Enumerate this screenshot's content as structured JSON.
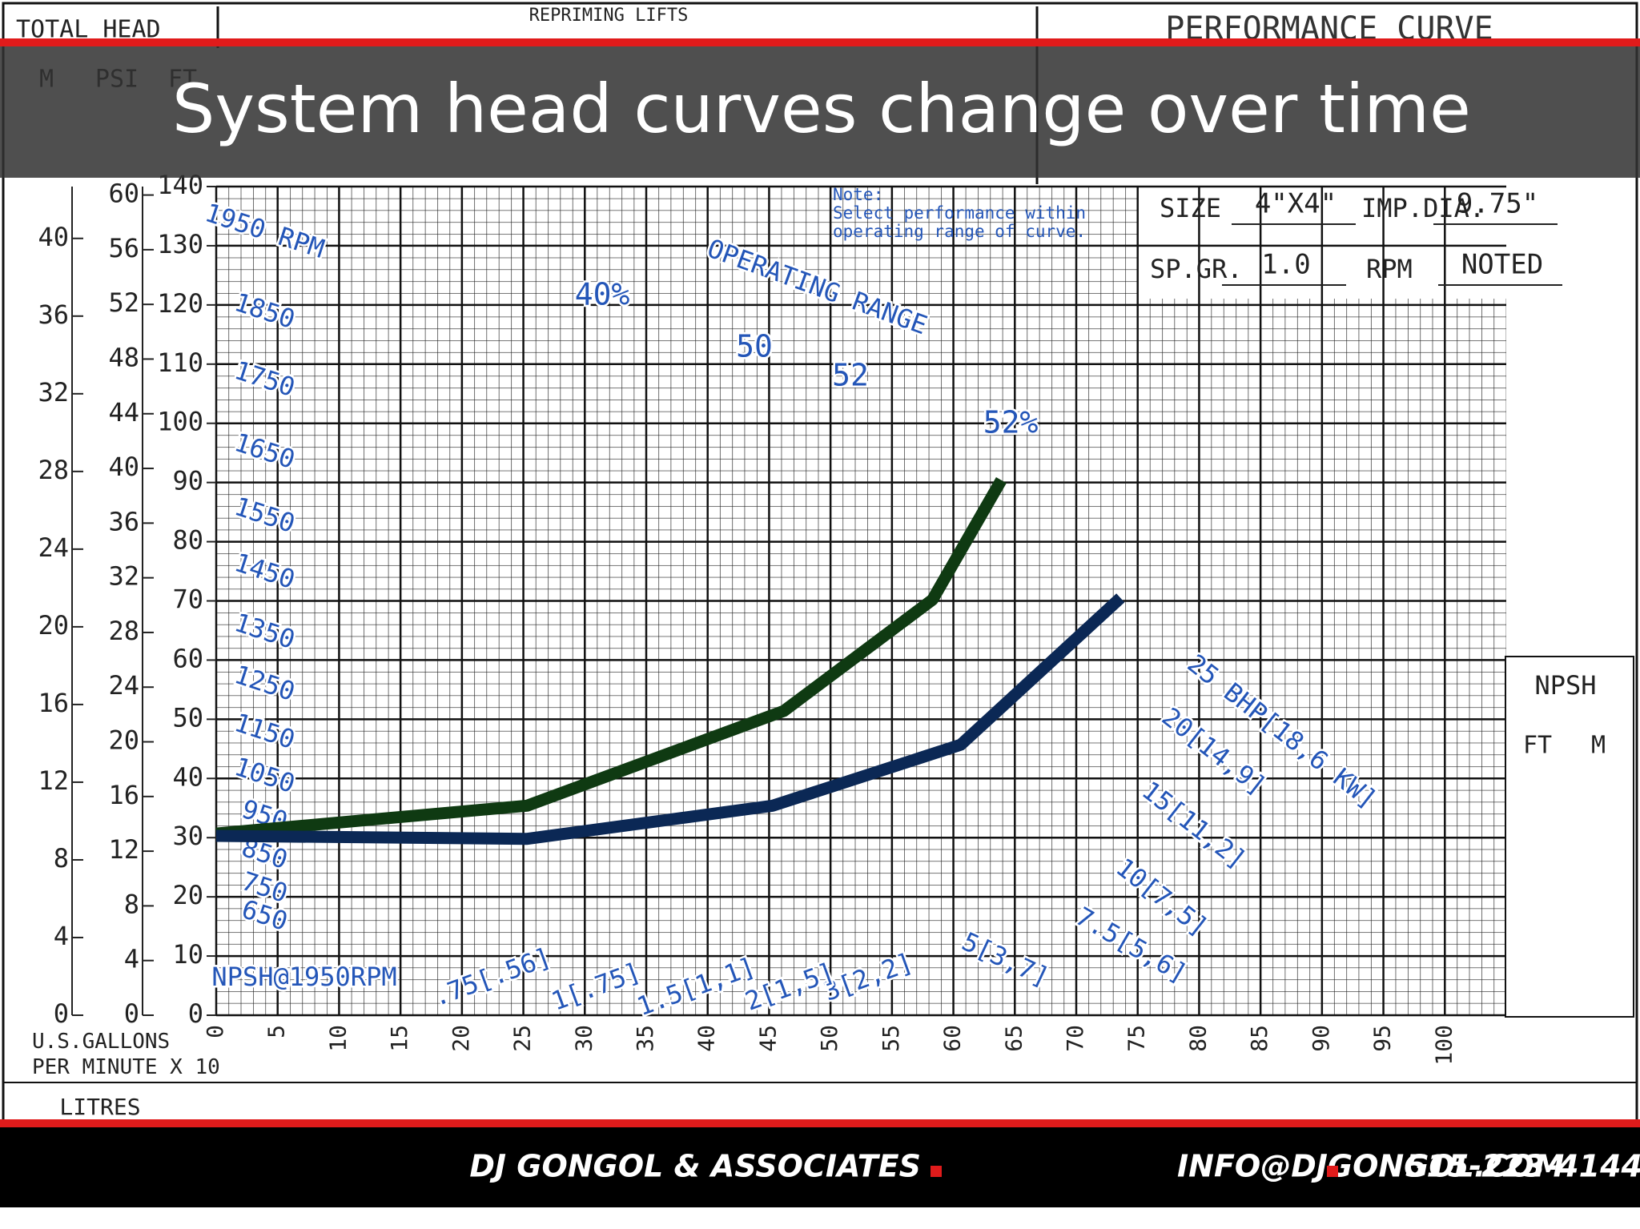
{
  "slide": {
    "title": "System head curves change over time",
    "footer": [
      "DJ GONGOL & ASSOCIATES",
      "INFO@DJGONGOL.COM",
      "515-223-4144"
    ]
  },
  "sheet": {
    "total_head": "TOTAL HEAD",
    "repriming_lifts": "REPRIMING LIFTS",
    "performance_curve": "PERFORMANCE CURVE",
    "note": "Note:\nSelect performance within\noperating range of curve.",
    "specs": [
      [
        "SIZE",
        "4\"X4\""
      ],
      [
        "IMP.DIA.",
        "9.75\""
      ],
      [
        "SP.GR.",
        "1.0"
      ],
      [
        "RPM",
        "NOTED"
      ]
    ],
    "litres": "LITRES",
    "npsh": [
      "NPSH",
      "FT",
      "M"
    ]
  },
  "chart_data": {
    "type": "line",
    "xlabel": "U.S.GALLONS\nPER MINUTE X 10",
    "ylabel": "FT",
    "xlim": [
      0,
      105
    ],
    "ylim": [
      0,
      140
    ],
    "xticks": [
      0,
      5,
      10,
      15,
      20,
      25,
      30,
      35,
      40,
      45,
      50,
      55,
      60,
      65,
      70,
      75,
      80,
      85,
      90,
      95,
      100
    ],
    "yticks": [
      0,
      10,
      20,
      30,
      40,
      50,
      60,
      70,
      80,
      90,
      100,
      110,
      120,
      130,
      140
    ],
    "grid": true,
    "extra_axes": [
      {
        "label": "M",
        "lim": [
          0,
          42.67
        ],
        "ticks": [
          0,
          4,
          8,
          12,
          16,
          20,
          24,
          28,
          32,
          36,
          40
        ]
      },
      {
        "label": "PSI",
        "lim": [
          0,
          60.62
        ],
        "ticks": [
          0,
          4,
          8,
          12,
          16,
          20,
          24,
          28,
          32,
          36,
          40,
          44,
          48,
          52,
          56,
          60
        ]
      }
    ],
    "annotations": [
      "1950 RPM",
      "1850",
      "1750",
      "1650",
      "1550",
      "1450",
      "1350",
      "1250",
      "1150",
      "1050",
      "950",
      "850",
      "750",
      "650",
      "40%",
      "50",
      "52",
      "52%",
      "OPERATING RANGE",
      "NPSH@1950RPM",
      "25 BHP[18,6 KW]",
      "20[14,9]",
      "15[11,2]",
      "10[7,5]",
      "7.5[5,6]",
      "5[3,7]",
      "3[2,2]",
      "2[1,5]",
      "1.5[1,1]",
      "1[.75]",
      ".75[.56]"
    ],
    "series": [
      {
        "color": "#0f3a12",
        "x": [
          0,
          25.3,
          46.2,
          58.3,
          63.9
        ],
        "values": [
          30.7,
          35.4,
          51.4,
          70.2,
          90.4
        ]
      },
      {
        "color": "#0b2855",
        "x": [
          0,
          25.3,
          45.3,
          60.6,
          73.6
        ],
        "values": [
          30.3,
          29.8,
          35.4,
          45.7,
          70.5
        ]
      }
    ]
  }
}
